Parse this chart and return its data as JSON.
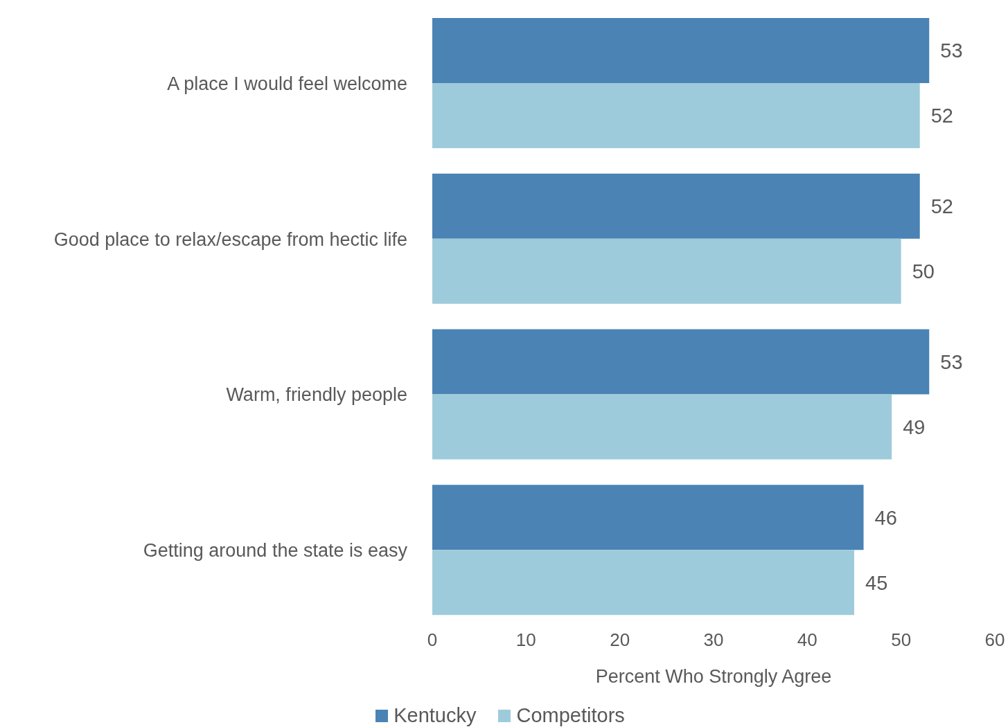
{
  "chart_data": {
    "type": "bar",
    "orientation": "horizontal",
    "xlabel": "Percent Who Strongly Agree",
    "categories": [
      "A place I would feel welcome",
      "Good place to relax/escape from hectic life",
      "Warm, friendly people",
      "Getting around the state is easy"
    ],
    "series": [
      {
        "name": "Kentucky",
        "color": "#4a83b4",
        "values": [
          53,
          52,
          53,
          46
        ]
      },
      {
        "name": "Competitors",
        "color": "#9ecbdb",
        "values": [
          52,
          50,
          49,
          45
        ]
      }
    ],
    "xlim": [
      0,
      60
    ],
    "xticks": [
      0,
      10,
      20,
      30,
      40,
      50,
      60
    ],
    "data_labels": true,
    "grid": false,
    "legend": "bottom"
  }
}
